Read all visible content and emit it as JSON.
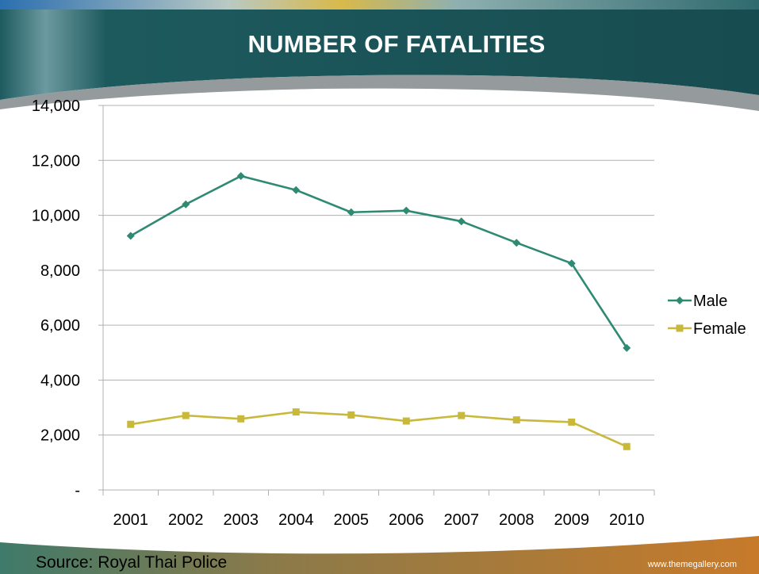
{
  "slide": {
    "title": "NUMBER OF FATALITIES",
    "source": "Source: Royal Thai Police",
    "website": "www.themegallery.com"
  },
  "colors": {
    "header_bar": "#1d5a5e",
    "header_highlight": "#6b9aa0",
    "footer_green": "#3f7a6a",
    "footer_orange": "#c77a2a",
    "male": "#2e8a73",
    "female": "#c9b93b",
    "grid": "#b0b0b0"
  },
  "chart_data": {
    "type": "line",
    "categories": [
      "2001",
      "2002",
      "2003",
      "2004",
      "2005",
      "2006",
      "2007",
      "2008",
      "2009",
      "2010"
    ],
    "series": [
      {
        "name": "Male",
        "marker": "diamond",
        "values": [
          9250,
          10400,
          11430,
          10920,
          10110,
          10170,
          9780,
          9000,
          8250,
          5170
        ]
      },
      {
        "name": "Female",
        "marker": "square",
        "values": [
          2390,
          2710,
          2590,
          2840,
          2730,
          2510,
          2710,
          2550,
          2470,
          1580
        ]
      }
    ],
    "yticks": [
      "-",
      "2,000",
      "4,000",
      "6,000",
      "8,000",
      "10,000",
      "12,000",
      "14,000"
    ],
    "ylim": [
      0,
      14000
    ],
    "grid": true,
    "legend_position": "right"
  }
}
